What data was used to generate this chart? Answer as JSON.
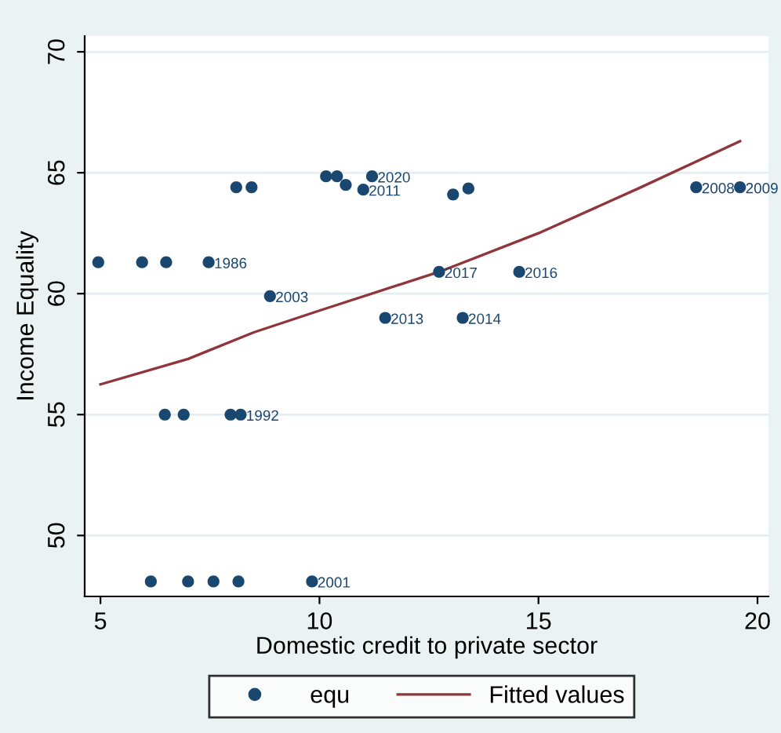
{
  "chart_data": {
    "type": "scatter",
    "xlabel": "Domestic credit to private sector",
    "ylabel": "Income Equality",
    "xlim": [
      4.64,
      20.25
    ],
    "ylim": [
      47.48,
      70.65
    ],
    "xticks": [
      5,
      10,
      15,
      20
    ],
    "yticks": [
      50,
      55,
      60,
      65,
      70
    ],
    "grid": "y",
    "legend": "bottom",
    "marker": "circle",
    "series": [
      {
        "name": "equ",
        "color": "#1a476f",
        "x": [
          4.95,
          5.95,
          6.5,
          7.47,
          6.15,
          7.0,
          7.58,
          8.15,
          9.83,
          6.47,
          6.9,
          7.97,
          8.2,
          8.87,
          8.1,
          8.45,
          10.15,
          10.4,
          10.6,
          11.0,
          11.2,
          13.05,
          13.4,
          18.6,
          19.6,
          11.5,
          13.27,
          12.73,
          14.56
        ],
        "values": [
          61.3,
          61.3,
          61.3,
          61.3,
          48.1,
          48.1,
          48.1,
          48.1,
          48.1,
          55.0,
          55.0,
          55.0,
          55.0,
          59.9,
          64.4,
          64.4,
          64.85,
          64.85,
          64.5,
          64.3,
          64.85,
          64.1,
          64.35,
          64.4,
          64.4,
          59.0,
          59.0,
          60.9,
          60.9
        ]
      },
      {
        "name": "Fitted values",
        "type": "line",
        "color": "#90353b",
        "marker": "none",
        "line_style": "solid",
        "x": [
          5,
          7,
          8.5,
          10,
          12.73,
          15,
          17.28,
          19.6
        ],
        "values": [
          56.25,
          57.3,
          58.4,
          59.3,
          60.9,
          62.5,
          64.35,
          66.3
        ]
      }
    ],
    "annotations": [
      {
        "text": "1986",
        "x": 7.47,
        "y": 61.3
      },
      {
        "text": "1992",
        "x": 8.2,
        "y": 55.0
      },
      {
        "text": "2001",
        "x": 9.83,
        "y": 48.1
      },
      {
        "text": "2003",
        "x": 8.87,
        "y": 59.9
      },
      {
        "text": "2008",
        "x": 18.6,
        "y": 64.4
      },
      {
        "text": "2009",
        "x": 19.6,
        "y": 64.4
      },
      {
        "text": "2011",
        "x": 11.0,
        "y": 64.3
      },
      {
        "text": "2013",
        "x": 11.5,
        "y": 59.0
      },
      {
        "text": "2014",
        "x": 13.27,
        "y": 59.0
      },
      {
        "text": "2016",
        "x": 14.56,
        "y": 60.9
      },
      {
        "text": "2017",
        "x": 12.73,
        "y": 60.9
      },
      {
        "text": "2020",
        "x": 11.2,
        "y": 64.85
      }
    ]
  }
}
